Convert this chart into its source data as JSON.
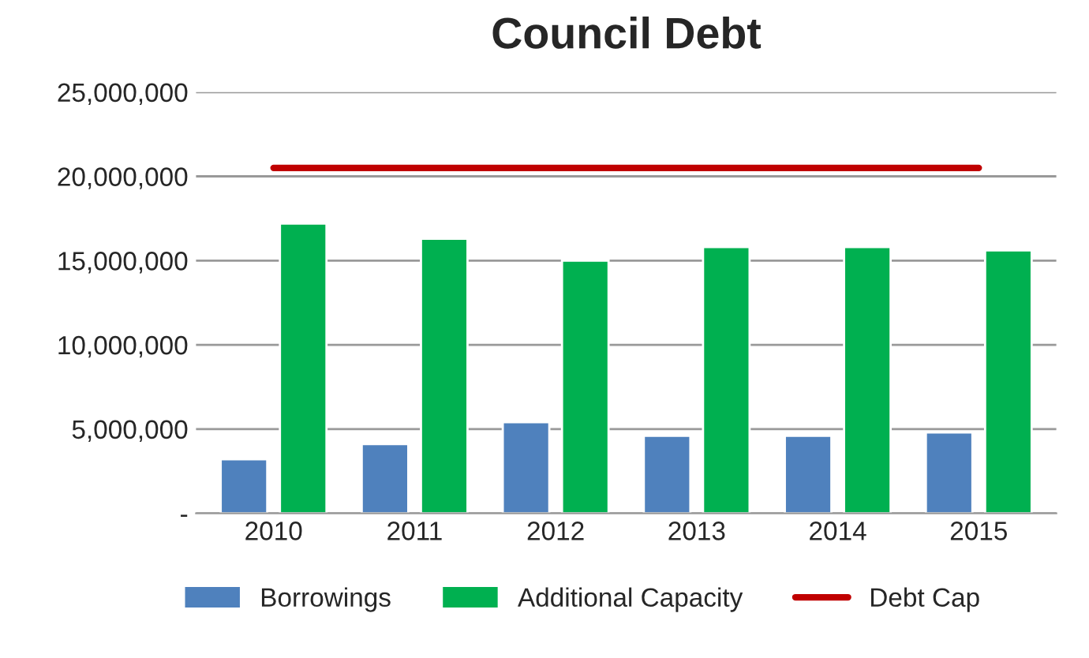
{
  "chart_data": {
    "type": "bar",
    "title": "Council Debt",
    "categories": [
      "2010",
      "2011",
      "2012",
      "2013",
      "2014",
      "2015"
    ],
    "series": [
      {
        "name": "Borrowings",
        "color": "#4f81bd",
        "values": [
          3200000,
          4100000,
          5400000,
          4600000,
          4600000,
          4800000
        ]
      },
      {
        "name": "Additional Capacity",
        "color": "#00b050",
        "values": [
          17200000,
          16300000,
          15000000,
          15800000,
          15800000,
          15600000
        ]
      },
      {
        "name": "Debt Cap",
        "type": "line",
        "color": "#c00000",
        "values": [
          20500000,
          20500000,
          20500000,
          20500000,
          20500000,
          20500000
        ]
      }
    ],
    "ylim": [
      0,
      25000000
    ],
    "yticks": [
      {
        "value": 0,
        "label": "-"
      },
      {
        "value": 5000000,
        "label": "5,000,000"
      },
      {
        "value": 10000000,
        "label": "10,000,000"
      },
      {
        "value": 15000000,
        "label": "15,000,000"
      },
      {
        "value": 20000000,
        "label": "20,000,000"
      },
      {
        "value": 25000000,
        "label": "25,000,000"
      }
    ],
    "grid": "y",
    "legend": "bottom"
  }
}
